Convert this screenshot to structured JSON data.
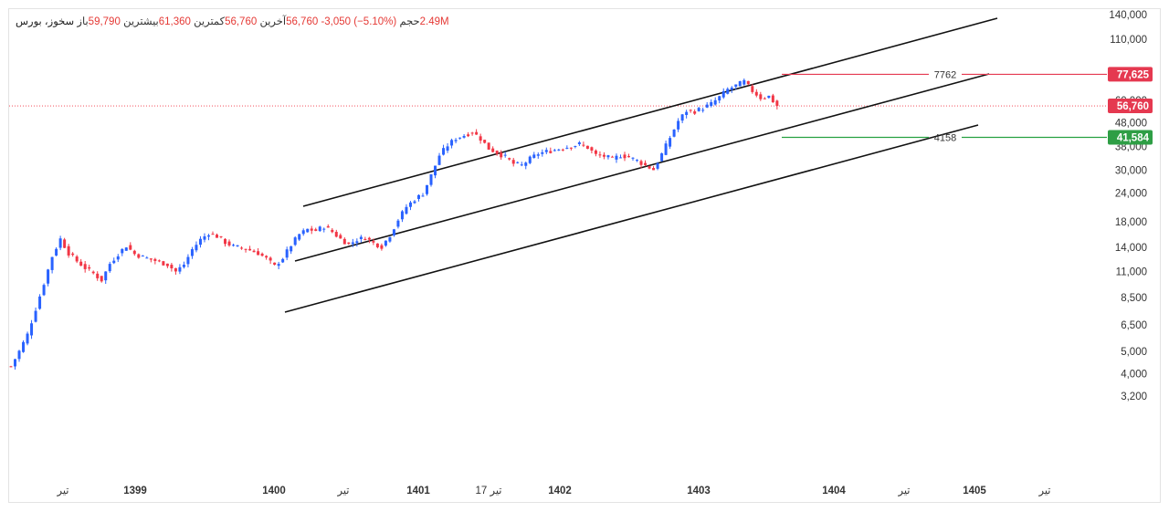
{
  "legend": {
    "symbol": "سخوز، بورس",
    "open_label": "باز",
    "open_value": "59,790",
    "high_label": "بیشترین",
    "high_value": "61,360",
    "low_label": "کمترین",
    "low_value": "56,760",
    "close_label": "آخرین",
    "close_value": "56,760",
    "change": "-3,050 (−5.10%)",
    "volume_label": "حجم",
    "volume_value": "2.49M"
  },
  "colors": {
    "up": "#2962ff",
    "down": "#f23645",
    "resistance": "#e53950",
    "support": "#26a041",
    "price_badge": "#e53950",
    "support_badge": "#2e9e45",
    "channel": "#111111"
  },
  "chart_data": {
    "type": "candlestick",
    "y_scale": "log",
    "ylim": [
      2600,
      150000
    ],
    "y_ticks": [
      "140,000",
      "110,000",
      "60,000",
      "48,000",
      "38,000",
      "30,000",
      "24,000",
      "18,000",
      "14,000",
      "11,000",
      "8,500",
      "6,500",
      "5,000",
      "4,000",
      "3,200"
    ],
    "x_labels": [
      "تیر",
      "1399",
      "1400",
      "تیر",
      "1401",
      "17 تیر",
      "1402",
      "1403",
      "1404",
      "تیر",
      "1405",
      "تیر"
    ],
    "x_label_bold": [
      false,
      true,
      true,
      false,
      true,
      false,
      true,
      true,
      true,
      false,
      true,
      false
    ],
    "price_path": [
      [
        0,
        4300
      ],
      [
        2,
        5000
      ],
      [
        4,
        5900
      ],
      [
        6,
        7600
      ],
      [
        8,
        9800
      ],
      [
        10,
        12800
      ],
      [
        12,
        15200
      ],
      [
        14,
        13200
      ],
      [
        16,
        12200
      ],
      [
        18,
        11400
      ],
      [
        20,
        10800
      ],
      [
        22,
        10100
      ],
      [
        24,
        11900
      ],
      [
        26,
        13100
      ],
      [
        28,
        14200
      ],
      [
        30,
        13100
      ],
      [
        32,
        12700
      ],
      [
        34,
        12400
      ],
      [
        36,
        12100
      ],
      [
        38,
        11800
      ],
      [
        40,
        11000
      ],
      [
        42,
        11800
      ],
      [
        44,
        13700
      ],
      [
        46,
        15100
      ],
      [
        48,
        16100
      ],
      [
        50,
        15600
      ],
      [
        52,
        14700
      ],
      [
        54,
        14100
      ],
      [
        56,
        13900
      ],
      [
        58,
        13600
      ],
      [
        60,
        13200
      ],
      [
        62,
        12500
      ],
      [
        64,
        11600
      ],
      [
        66,
        12600
      ],
      [
        68,
        14300
      ],
      [
        70,
        15900
      ],
      [
        72,
        16700
      ],
      [
        74,
        16500
      ],
      [
        76,
        17200
      ],
      [
        78,
        16300
      ],
      [
        80,
        15200
      ],
      [
        82,
        14400
      ],
      [
        84,
        15100
      ],
      [
        86,
        15400
      ],
      [
        88,
        14600
      ],
      [
        90,
        14100
      ],
      [
        92,
        15800
      ],
      [
        94,
        18400
      ],
      [
        96,
        20900
      ],
      [
        98,
        22500
      ],
      [
        100,
        23800
      ],
      [
        102,
        28500
      ],
      [
        104,
        34800
      ],
      [
        106,
        38400
      ],
      [
        108,
        41200
      ],
      [
        110,
        42400
      ],
      [
        112,
        43900
      ],
      [
        114,
        41000
      ],
      [
        116,
        37200
      ],
      [
        118,
        35700
      ],
      [
        120,
        34200
      ],
      [
        122,
        32000
      ],
      [
        124,
        31500
      ],
      [
        126,
        33600
      ],
      [
        128,
        35400
      ],
      [
        130,
        36100
      ],
      [
        132,
        36700
      ],
      [
        134,
        37500
      ],
      [
        136,
        38100
      ],
      [
        138,
        38900
      ],
      [
        140,
        37600
      ],
      [
        142,
        34900
      ],
      [
        144,
        34500
      ],
      [
        146,
        33500
      ],
      [
        148,
        34800
      ],
      [
        150,
        34200
      ],
      [
        152,
        33000
      ],
      [
        154,
        31500
      ],
      [
        156,
        30200
      ],
      [
        158,
        35200
      ],
      [
        160,
        41500
      ],
      [
        162,
        48900
      ],
      [
        164,
        54100
      ],
      [
        166,
        53800
      ],
      [
        168,
        55600
      ],
      [
        170,
        57900
      ],
      [
        172,
        61900
      ],
      [
        174,
        66800
      ],
      [
        176,
        69400
      ],
      [
        178,
        72200
      ],
      [
        180,
        65800
      ],
      [
        182,
        61500
      ],
      [
        184,
        62400
      ],
      [
        186,
        56760
      ]
    ],
    "resistance_label": "7762",
    "resistance_price": "77,625",
    "support_label": "4158",
    "support_price": "41,584",
    "last_price": "56,760"
  }
}
